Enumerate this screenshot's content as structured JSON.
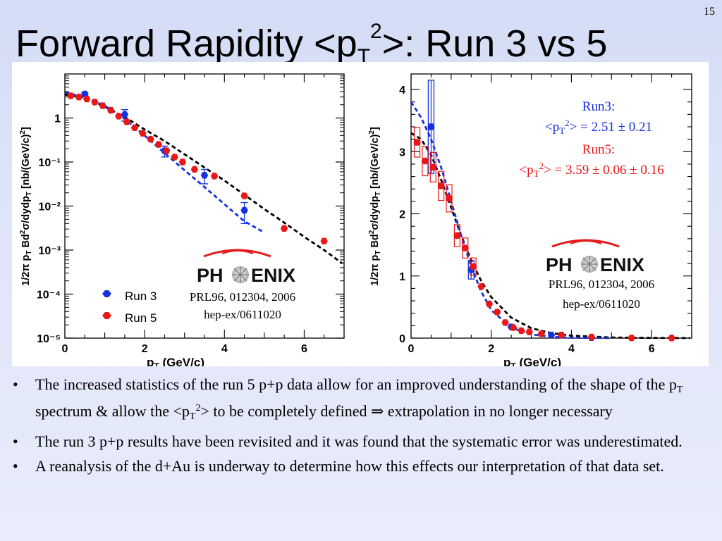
{
  "slide_number": "15",
  "title": {
    "pre": "Forward Rapidity <p",
    "sub": "T",
    "sup": "2",
    "post": ">: Run 3 vs 5"
  },
  "colors": {
    "run3": "#1530e0",
    "run5": "#e81818",
    "fit": "#000000"
  },
  "chart_data": [
    {
      "type": "scatter",
      "y_scale": "log",
      "xlabel": "p_T (GeV/c)",
      "ylabel": "1/2π p_T Bd²σ/dydp_T [nb/(GeV/c)²]",
      "xlim": [
        0,
        7
      ],
      "ylim": [
        1e-05,
        10
      ],
      "x_ticks": [
        "0",
        "2",
        "4",
        "6"
      ],
      "y_ticks": [
        "10⁻⁵",
        "10⁻⁴",
        "10⁻³",
        "10⁻²",
        "10⁻¹",
        "1"
      ],
      "legend": [
        "Run 3",
        "Run 5"
      ],
      "logo": "PHENIX",
      "reference": [
        "PRL96, 012304, 2006",
        "hep-ex/0611020"
      ],
      "series": [
        {
          "name": "Run 3",
          "color": "#1530e0",
          "x": [
            0.5,
            1.5,
            2.5,
            3.5,
            4.5
          ],
          "y": [
            3.5,
            1.2,
            0.18,
            0.05,
            0.008
          ],
          "yerr_lo": [
            0.3,
            0.35,
            0.05,
            0.018,
            0.004
          ],
          "yerr_hi": [
            0.3,
            0.35,
            0.05,
            0.018,
            0.004
          ]
        },
        {
          "name": "Run 5",
          "color": "#e81818",
          "x": [
            0.15,
            0.35,
            0.55,
            0.75,
            0.95,
            1.15,
            1.35,
            1.55,
            1.75,
            1.95,
            2.15,
            2.35,
            2.55,
            2.75,
            2.95,
            3.25,
            3.75,
            4.5,
            5.5,
            6.5
          ],
          "y": [
            3.2,
            3.0,
            2.7,
            2.3,
            1.9,
            1.5,
            1.1,
            0.82,
            0.6,
            0.45,
            0.33,
            0.25,
            0.18,
            0.13,
            0.1,
            0.068,
            0.048,
            0.017,
            0.0031,
            0.0016
          ]
        }
      ],
      "fits": [
        {
          "name": "Run 5 fit",
          "color": "#000000",
          "style": "dashed",
          "x": [
            0.0,
            0.5,
            1.0,
            1.5,
            2.0,
            2.5,
            3.0,
            3.5,
            4.0,
            4.5,
            5.0,
            5.5,
            6.0,
            6.5,
            6.95
          ],
          "y": [
            3.4,
            2.9,
            1.8,
            1.05,
            0.55,
            0.3,
            0.15,
            0.075,
            0.038,
            0.018,
            0.0085,
            0.0042,
            0.002,
            0.001,
            0.0005
          ]
        },
        {
          "name": "Run 3 fit",
          "color": "#1530e0",
          "style": "dashed",
          "x": [
            0.0,
            0.5,
            1.0,
            1.5,
            2.0,
            2.5,
            3.0,
            3.5,
            4.0,
            4.5,
            5.0
          ],
          "y": [
            3.8,
            3.0,
            1.9,
            0.95,
            0.4,
            0.16,
            0.065,
            0.027,
            0.011,
            0.0045,
            0.0025
          ]
        }
      ]
    },
    {
      "type": "scatter",
      "xlabel": "p_T (GeV/c)",
      "ylabel": "1/2π p_T Bd²σ/dydp_T [nb/(GeV/c)²]",
      "xlim": [
        0,
        7
      ],
      "ylim": [
        0,
        4.25
      ],
      "x_ticks": [
        "0",
        "2",
        "4",
        "6"
      ],
      "y_ticks": [
        "0",
        "1",
        "2",
        "3",
        "4"
      ],
      "logo": "PHENIX",
      "reference": [
        "PRL96, 012304, 2006",
        "hep-ex/0611020"
      ],
      "annotations": [
        {
          "label": "Run3:",
          "value_pre": "<p",
          "value_sub": "T",
          "value_sup": "2",
          "value_post": "> = 2.51 ± 0.21",
          "color": "#1530e0"
        },
        {
          "label": "Run5:",
          "value_pre": "<p",
          "value_sub": "T",
          "value_sup": "2",
          "value_post": "> = 3.59 ± 0.06 ± 0.16",
          "color": "#e81818"
        }
      ],
      "series": [
        {
          "name": "Run 3",
          "color": "#1530e0",
          "x": [
            0.5,
            1.5,
            2.5,
            3.5,
            4.5
          ],
          "y": [
            3.4,
            1.1,
            0.18,
            0.05,
            0.008
          ],
          "yerr": [
            0.75,
            0.15,
            0.03,
            0.01,
            0.004
          ]
        },
        {
          "name": "Run 5",
          "color": "#e81818",
          "x": [
            0.15,
            0.35,
            0.55,
            0.75,
            0.95,
            1.15,
            1.35,
            1.55,
            1.75,
            1.95,
            2.15,
            2.35,
            2.55,
            2.75,
            2.95,
            3.25,
            3.75,
            4.5,
            5.5,
            6.5
          ],
          "y": [
            3.15,
            2.85,
            2.75,
            2.45,
            2.25,
            1.65,
            1.45,
            1.15,
            0.83,
            0.55,
            0.42,
            0.25,
            0.17,
            0.12,
            0.1,
            0.07,
            0.05,
            0.017,
            0.003,
            0.002
          ]
        }
      ],
      "fits": [
        {
          "name": "Run 5 fit",
          "color": "#000000",
          "style": "dashed",
          "x": [
            0.0,
            0.25,
            0.5,
            0.75,
            1.0,
            1.25,
            1.5,
            1.75,
            2.0,
            2.5,
            3.0,
            3.5,
            4.0,
            5.0,
            6.0,
            6.95
          ],
          "y": [
            3.3,
            3.2,
            2.95,
            2.55,
            2.1,
            1.65,
            1.25,
            0.92,
            0.66,
            0.33,
            0.16,
            0.08,
            0.04,
            0.01,
            0.003,
            0.001
          ]
        },
        {
          "name": "Run 3 fit",
          "color": "#1530e0",
          "style": "dashed",
          "x": [
            0.0,
            0.25,
            0.5,
            0.75,
            1.0,
            1.25,
            1.5,
            1.75,
            2.0,
            2.5,
            3.0,
            3.5,
            4.0,
            5.0
          ],
          "y": [
            3.8,
            3.55,
            3.2,
            2.75,
            2.2,
            1.65,
            1.15,
            0.75,
            0.45,
            0.17,
            0.06,
            0.02,
            0.007,
            0.001
          ]
        }
      ]
    }
  ],
  "bullets": [
    {
      "pre": "The increased statistics of the run 5 p+p data allow for an improved understanding of the shape of the p",
      "sub": "T",
      "mid": " spectrum & allow the <p",
      "sub2": "T",
      "sup": "2",
      "post": "> to be completely defined ⇒ extrapolation in no longer necessary"
    },
    {
      "text": "The run 3 p+p results have been revisited and it was found that the systematic error was underestimated."
    },
    {
      "text": "A reanalysis of the d+Au is underway to determine how this effects our interpretation of that data set."
    }
  ],
  "bullet_marker": "•"
}
